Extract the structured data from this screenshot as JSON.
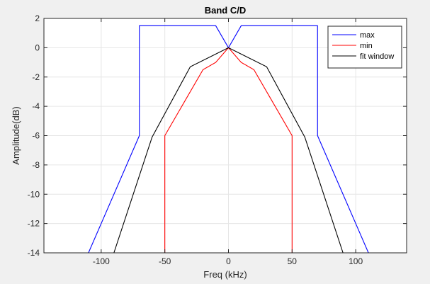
{
  "chart_data": {
    "type": "line",
    "title": "Band C/D",
    "xlabel": "Freq (kHz)",
    "ylabel": "Amplitude(dB)",
    "xlim": [
      -145,
      140
    ],
    "ylim": [
      -14,
      2
    ],
    "xticks": [
      -100,
      -50,
      0,
      50,
      100
    ],
    "yticks": [
      2,
      0,
      -2,
      -4,
      -6,
      -8,
      -10,
      -12,
      -14
    ],
    "grid": true,
    "legend_position": "top-right",
    "series": [
      {
        "name": "max",
        "color": "#0000ff",
        "x": [
          -110,
          -70,
          -70,
          -10,
          0,
          10,
          70,
          70,
          110
        ],
        "y": [
          -14,
          -6,
          1.5,
          1.5,
          0,
          1.5,
          1.5,
          -6,
          -14
        ]
      },
      {
        "name": "min",
        "color": "#ff0000",
        "x": [
          -50,
          -50,
          -20,
          -10,
          0,
          10,
          20,
          50,
          50
        ],
        "y": [
          -14,
          -6,
          -1.5,
          -1,
          0,
          -1,
          -1.5,
          -6,
          -14
        ]
      },
      {
        "name": "fit window",
        "color": "#000000",
        "x": [
          -90,
          -60,
          -30,
          0,
          30,
          60,
          90
        ],
        "y": [
          -14,
          -6.1,
          -1.3,
          0,
          -1.3,
          -6.1,
          -14
        ]
      }
    ]
  }
}
